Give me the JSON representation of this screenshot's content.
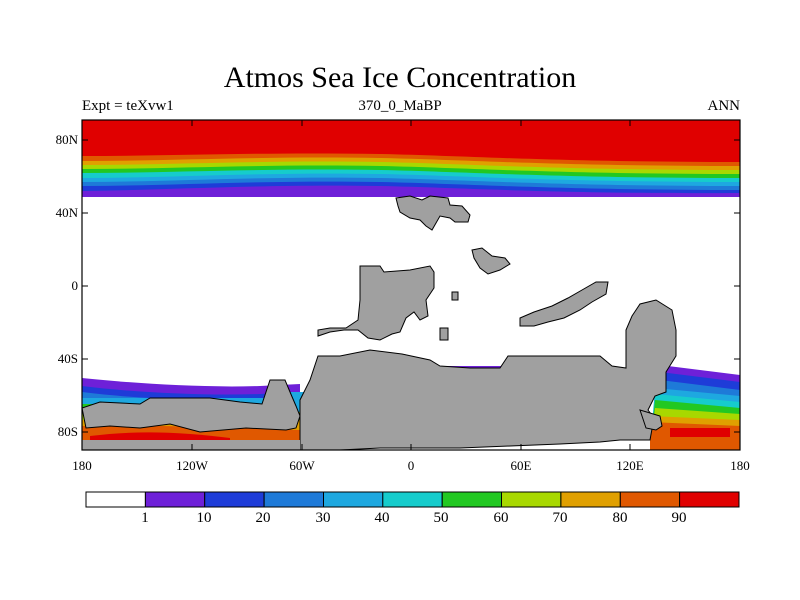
{
  "plot": {
    "title": "Atmos Sea Ice Concentration",
    "left_label": "Expt = teXvw1",
    "center_label": "370_0_MaBP",
    "right_label": "ANN"
  },
  "axes": {
    "y_ticks": [
      "80N",
      "40N",
      "0",
      "40S",
      "80S"
    ],
    "x_ticks": [
      "180",
      "120W",
      "60W",
      "0",
      "60E",
      "120E",
      "180"
    ]
  },
  "colorbar": {
    "labels": [
      "1",
      "10",
      "20",
      "30",
      "40",
      "50",
      "60",
      "70",
      "80",
      "90"
    ],
    "colors": [
      "#ffffff",
      "#6e20d8",
      "#1e3cd8",
      "#1e7ad8",
      "#1ea8e0",
      "#16cccc",
      "#22c822",
      "#a8d800",
      "#e0a000",
      "#e05800",
      "#e00000"
    ]
  },
  "colors": {
    "land": "#a0a0a0",
    "coast": "#000000"
  }
}
